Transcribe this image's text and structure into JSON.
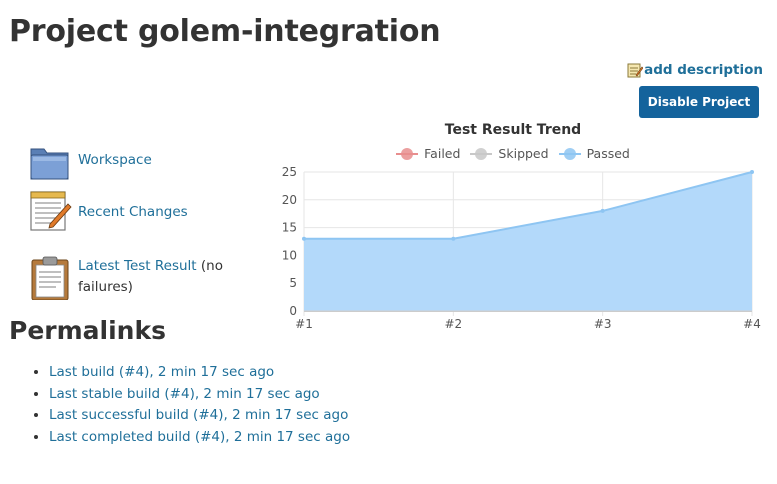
{
  "page": {
    "title": "Project golem-integration",
    "add_description": "add description",
    "disable_button": "Disable Project"
  },
  "tasks": {
    "workspace": "Workspace",
    "recent_changes": "Recent Changes",
    "latest_test_result": "Latest Test Result",
    "latest_test_note": " (no failures)"
  },
  "permalinks": {
    "title": "Permalinks",
    "items": [
      "Last build (#4), 2 min 17 sec ago",
      "Last stable build (#4), 2 min 17 sec ago",
      "Last successful build (#4), 2 min 17 sec ago",
      "Last completed build (#4), 2 min 17 sec ago"
    ]
  },
  "chart_data": {
    "type": "area",
    "title": "Test Result Trend",
    "categories": [
      "#1",
      "#2",
      "#3",
      "#4"
    ],
    "series": [
      {
        "name": "Failed",
        "values": [
          0,
          0,
          0,
          0
        ],
        "color": "#e88e8e"
      },
      {
        "name": "Skipped",
        "values": [
          0,
          0,
          0,
          0
        ],
        "color": "#c8c8c8"
      },
      {
        "name": "Passed",
        "values": [
          13,
          13,
          18,
          25
        ],
        "color": "#8ec5f2"
      }
    ],
    "yticks": [
      0,
      5,
      10,
      15,
      20,
      25
    ],
    "ylim": [
      0,
      25
    ],
    "legend_position": "top",
    "grid": true
  },
  "colors": {
    "link": "#1f6f99",
    "button": "#14639c",
    "passed_fill": "#b3d9fa"
  },
  "icons": [
    "notepad-icon",
    "folder-icon",
    "notepad-pencil-icon",
    "clipboard-icon"
  ]
}
